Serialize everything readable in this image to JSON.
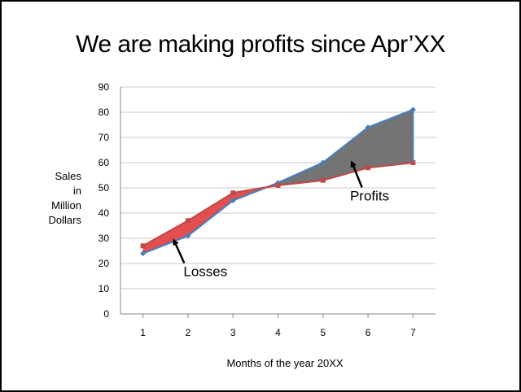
{
  "chart_data": {
    "type": "area",
    "title": "We are making profits since Apr’XX",
    "xlabel": "Months of the year 20XX",
    "ylabel_lines": [
      "Sales",
      "in",
      "Million",
      "Dollars"
    ],
    "x": [
      1,
      2,
      3,
      4,
      5,
      6,
      7
    ],
    "ylim": [
      0,
      90
    ],
    "yticks": [
      0,
      10,
      20,
      30,
      40,
      50,
      60,
      70,
      80,
      90
    ],
    "grid": true,
    "series": [
      {
        "values": [
          24,
          31,
          45,
          52,
          60,
          74,
          81
        ],
        "color": "#4a7ebb"
      },
      {
        "values": [
          27,
          37,
          48,
          51,
          53,
          58,
          60
        ],
        "color": "#be4b48"
      }
    ],
    "annotations": [
      {
        "text": "Losses",
        "x": 1.9,
        "y": 15,
        "arrow_to": [
          1.7,
          30
        ]
      },
      {
        "text": "Profits",
        "x": 5.6,
        "y": 45,
        "arrow_to": [
          5.65,
          61
        ]
      }
    ],
    "fills": {
      "loss": "#e03c3c",
      "profit": "#7f7f7f"
    }
  }
}
